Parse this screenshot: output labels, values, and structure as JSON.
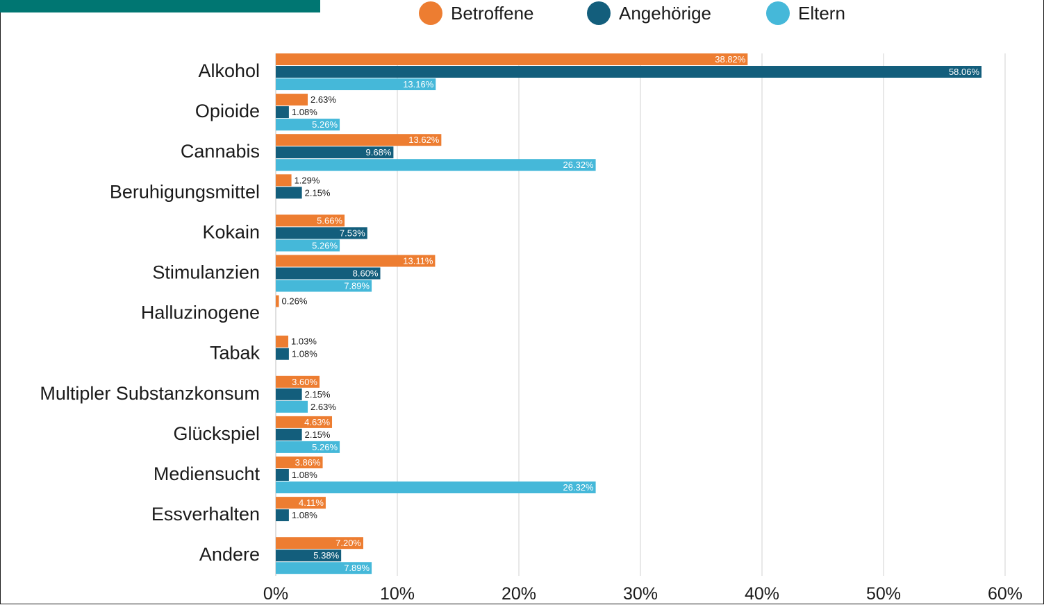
{
  "colors": {
    "accent": "#007672",
    "betroffene": "#ED7D31",
    "angehoerige": "#135E7C",
    "eltern": "#45B8D9",
    "grid": "#d0d0d0"
  },
  "legend": [
    {
      "name": "Betroffene",
      "color": "#ED7D31"
    },
    {
      "name": "Angehörige",
      "color": "#135E7C"
    },
    {
      "name": "Eltern",
      "color": "#45B8D9"
    }
  ],
  "chart_data": {
    "type": "bar",
    "orientation": "horizontal",
    "categories": [
      "Alkohol",
      "Opioide",
      "Cannabis",
      "Beruhigungsmittel",
      "Kokain",
      "Stimulanzien",
      "Halluzinogene",
      "Tabak",
      "Multipler Substanzkonsum",
      "Glückspiel",
      "Mediensucht",
      "Essverhalten",
      "Andere"
    ],
    "series": [
      {
        "name": "Betroffene",
        "values": [
          38.82,
          2.63,
          13.62,
          1.29,
          5.66,
          13.11,
          0.26,
          1.03,
          3.6,
          4.63,
          3.86,
          4.11,
          7.2
        ]
      },
      {
        "name": "Angehörige",
        "values": [
          58.06,
          1.08,
          9.68,
          2.15,
          7.53,
          8.6,
          null,
          1.08,
          2.15,
          2.15,
          1.08,
          1.08,
          5.38
        ]
      },
      {
        "name": "Eltern",
        "values": [
          13.16,
          5.26,
          26.32,
          null,
          5.26,
          7.89,
          null,
          null,
          2.63,
          5.26,
          26.32,
          null,
          7.89
        ]
      }
    ],
    "data_labels": [
      [
        "38.82%",
        "2.63%",
        "13.62%",
        "1.29%",
        "5.66%",
        "13.11%",
        "0.26%",
        "1.03%",
        "3.60%",
        "4.63%",
        "3.86%",
        "4.11%",
        "7.20%"
      ],
      [
        "58.06%",
        "1.08%",
        "9.68%",
        "2.15%",
        "7.53%",
        "8.60%",
        null,
        "1.08%",
        "2.15%",
        "2.15%",
        "1.08%",
        "1.08%",
        "5.38%"
      ],
      [
        "13.16%",
        "5.26%",
        "26.32%",
        null,
        "5.26%",
        "7.89%",
        null,
        null,
        "2.63%",
        "5.26%",
        "26.32%",
        null,
        "7.89%"
      ]
    ],
    "x_ticks": [
      "0%",
      "10%",
      "20%",
      "30%",
      "40%",
      "50%",
      "60%"
    ],
    "xlim": [
      0,
      60
    ],
    "grid": true,
    "legend_position": "top"
  }
}
